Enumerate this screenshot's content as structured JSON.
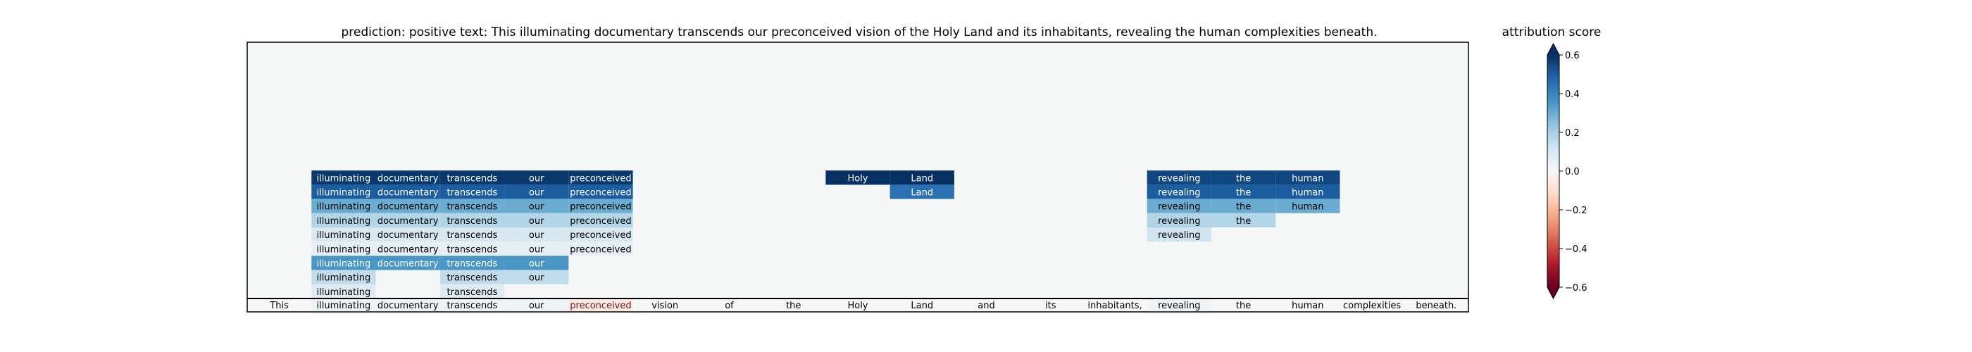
{
  "chart_data": {
    "type": "heatmap",
    "title": "prediction:  positive     text:  This illuminating documentary transcends our preconceived vision of the Holy Land and its inhabitants, revealing the human complexities beneath.",
    "tokens": [
      "This",
      "illuminating",
      "documentary",
      "transcends",
      "our",
      "preconceived",
      "vision",
      "of",
      "the",
      "Holy",
      "Land",
      "and",
      "its",
      "inhabitants,",
      "revealing",
      "the",
      "human",
      "complexities",
      "beneath."
    ],
    "base_row": [
      0.0,
      0.03,
      0.02,
      0.03,
      0.02,
      -0.05,
      0.0,
      0.0,
      0.0,
      0.0,
      0.0,
      0.0,
      0.0,
      0.0,
      0.02,
      0.0,
      0.0,
      0.0,
      0.0
    ],
    "rows": [
      [
        null,
        0.58,
        0.58,
        0.58,
        0.58,
        0.58,
        null,
        null,
        null,
        0.6,
        0.6,
        null,
        null,
        null,
        0.55,
        0.55,
        0.55,
        null,
        null
      ],
      [
        null,
        0.5,
        0.5,
        0.5,
        0.5,
        0.5,
        null,
        null,
        null,
        null,
        0.45,
        null,
        null,
        null,
        0.5,
        0.5,
        0.5,
        null,
        null
      ],
      [
        null,
        0.3,
        0.3,
        0.3,
        0.3,
        0.3,
        null,
        null,
        null,
        null,
        null,
        null,
        null,
        null,
        0.3,
        0.3,
        0.3,
        null,
        null
      ],
      [
        null,
        0.18,
        0.18,
        0.18,
        0.18,
        0.18,
        null,
        null,
        null,
        null,
        null,
        null,
        null,
        null,
        0.18,
        0.18,
        null,
        null,
        null
      ],
      [
        null,
        0.1,
        0.1,
        0.1,
        0.1,
        0.1,
        null,
        null,
        null,
        null,
        null,
        null,
        null,
        null,
        0.12,
        null,
        null,
        null,
        null
      ],
      [
        null,
        0.05,
        0.05,
        0.05,
        0.05,
        0.05,
        null,
        null,
        null,
        null,
        null,
        null,
        null,
        null,
        null,
        null,
        null,
        null,
        null
      ],
      [
        null,
        0.35,
        0.35,
        0.35,
        0.35,
        null,
        null,
        null,
        null,
        null,
        null,
        null,
        null,
        null,
        null,
        null,
        null,
        null,
        null
      ],
      [
        null,
        0.15,
        null,
        0.15,
        0.15,
        null,
        null,
        null,
        null,
        null,
        null,
        null,
        null,
        null,
        null,
        null,
        null,
        null,
        null
      ],
      [
        null,
        0.08,
        null,
        0.08,
        null,
        null,
        null,
        null,
        null,
        null,
        null,
        null,
        null,
        null,
        null,
        null,
        null,
        null,
        null
      ]
    ],
    "colorbar": {
      "label": "attribution score",
      "range": [
        -0.6,
        0.6
      ],
      "ticks": [
        0.6,
        0.4,
        0.2,
        0.0,
        -0.2,
        -0.4,
        -0.6
      ],
      "tick_labels": [
        "0.6",
        "0.4",
        "0.2",
        "0.0",
        "−0.2",
        "−0.4",
        "−0.6"
      ],
      "colormap": "RdBu"
    }
  }
}
